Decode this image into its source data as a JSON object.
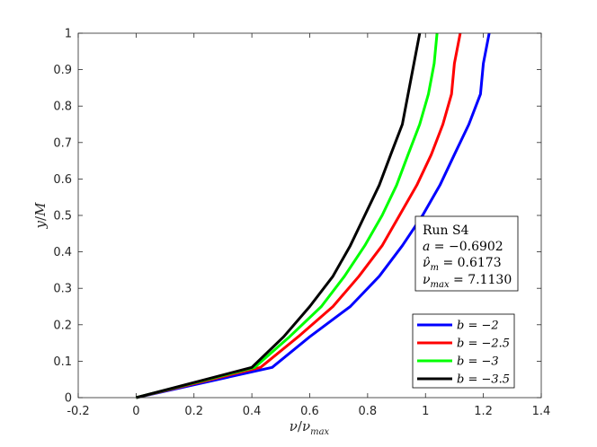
{
  "chart_data": {
    "type": "line",
    "xlabel": "ν/ν_max",
    "ylabel": "y/M",
    "xlim": [
      -0.2,
      1.4
    ],
    "ylim": [
      0,
      1
    ],
    "xticks": [
      "-0.2",
      "0",
      "0.2",
      "0.4",
      "0.6",
      "0.8",
      "1",
      "1.2",
      "1.4"
    ],
    "yticks": [
      "0",
      "0.1",
      "0.2",
      "0.3",
      "0.4",
      "0.5",
      "0.6",
      "0.7",
      "0.8",
      "0.9",
      "1"
    ],
    "grid": false,
    "legend_position": "bottom-right",
    "annotation": {
      "lines": [
        "Run S4",
        "a = −0.6902",
        "ν̂_m = 0.6173",
        "ν_max = 7.1130"
      ]
    },
    "series": [
      {
        "name": "b = −2",
        "color": "#0000ff",
        "points": [
          [
            0,
            0
          ],
          [
            0.47,
            0.083
          ],
          [
            0.6,
            0.167
          ],
          [
            0.74,
            0.25
          ],
          [
            0.84,
            0.333
          ],
          [
            0.92,
            0.417
          ],
          [
            0.99,
            0.5
          ],
          [
            1.05,
            0.583
          ],
          [
            1.1,
            0.667
          ],
          [
            1.15,
            0.75
          ],
          [
            1.19,
            0.833
          ],
          [
            1.2,
            0.917
          ],
          [
            1.22,
            1.0
          ]
        ]
      },
      {
        "name": "b = −2.5",
        "color": "#ff0000",
        "points": [
          [
            0,
            0
          ],
          [
            0.43,
            0.083
          ],
          [
            0.56,
            0.167
          ],
          [
            0.68,
            0.25
          ],
          [
            0.77,
            0.333
          ],
          [
            0.85,
            0.417
          ],
          [
            0.91,
            0.5
          ],
          [
            0.97,
            0.583
          ],
          [
            1.02,
            0.667
          ],
          [
            1.06,
            0.75
          ],
          [
            1.09,
            0.833
          ],
          [
            1.1,
            0.917
          ],
          [
            1.12,
            1.0
          ]
        ]
      },
      {
        "name": "b = −3",
        "color": "#00ff00",
        "points": [
          [
            0,
            0
          ],
          [
            0.41,
            0.083
          ],
          [
            0.53,
            0.167
          ],
          [
            0.64,
            0.25
          ],
          [
            0.72,
            0.333
          ],
          [
            0.79,
            0.417
          ],
          [
            0.85,
            0.5
          ],
          [
            0.9,
            0.583
          ],
          [
            0.94,
            0.667
          ],
          [
            0.98,
            0.75
          ],
          [
            1.01,
            0.833
          ],
          [
            1.03,
            0.917
          ],
          [
            1.04,
            1.0
          ]
        ]
      },
      {
        "name": "b = −3.5",
        "color": "#000000",
        "points": [
          [
            0,
            0
          ],
          [
            0.4,
            0.083
          ],
          [
            0.51,
            0.167
          ],
          [
            0.6,
            0.25
          ],
          [
            0.68,
            0.333
          ],
          [
            0.74,
            0.417
          ],
          [
            0.79,
            0.5
          ],
          [
            0.84,
            0.583
          ],
          [
            0.88,
            0.667
          ],
          [
            0.92,
            0.75
          ],
          [
            0.94,
            0.833
          ],
          [
            0.96,
            0.917
          ],
          [
            0.98,
            1.0
          ]
        ]
      }
    ]
  }
}
